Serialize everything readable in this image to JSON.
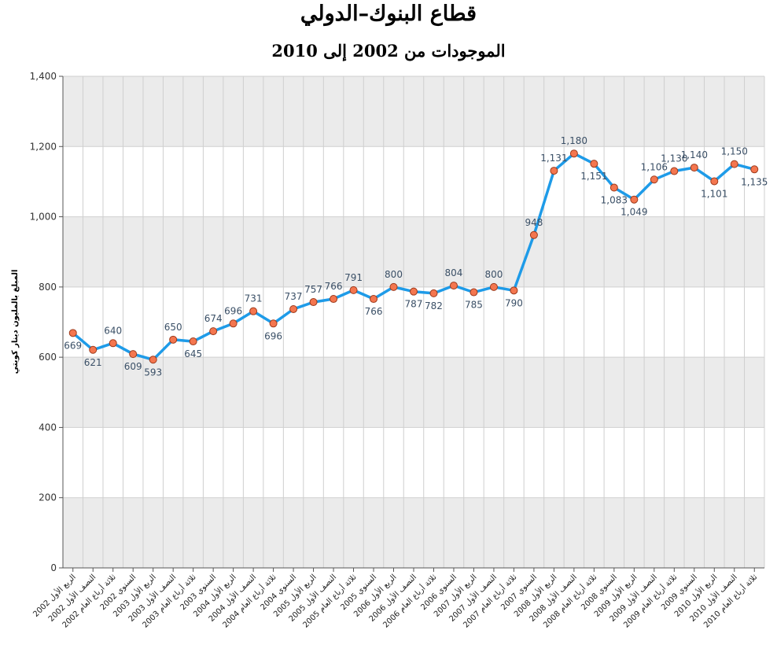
{
  "chart_data": {
    "type": "line",
    "title": "قطاع البنوك–الدولي",
    "subtitle": "الموجودات من 2002 إلى 2010",
    "xlabel": "",
    "ylabel": "المبلغ بالمليون دينار كويتي",
    "ylim": [
      0,
      1400
    ],
    "yticks": [
      0,
      200,
      400,
      600,
      800,
      1000,
      1200,
      1400
    ],
    "ytick_labels": [
      "0",
      "200",
      "400",
      "600",
      "800",
      "1,000",
      "1,200",
      "1,400"
    ],
    "grid": true,
    "categories": [
      "الربع الأول 2002",
      "النصف الأول 2002",
      "ثلاثة أرباع العام 2002",
      "السنوي 2002",
      "الربع الأول 2003",
      "النصف الأول 2003",
      "ثلاثة أرباع العام 2003",
      "السنوي 2003",
      "الربع الأول 2004",
      "النصف الأول 2004",
      "ثلاثة أرباع العام 2004",
      "السنوي 2004",
      "الربع الأول 2005",
      "النصف الأول 2005",
      "ثلاثة أرباع العام 2005",
      "السنوي 2005",
      "الربع الأول 2006",
      "النصف الأول 2006",
      "ثلاثة أرباع العام 2006",
      "السنوي 2006",
      "الربع الأول 2007",
      "النصف الأول 2007",
      "ثلاثة أرباع العام 2007",
      "السنوي 2007",
      "الربع الأول 2008",
      "النصف الأول 2008",
      "ثلاثة أرباع العام 2008",
      "السنوي 2008",
      "الربع الأول 2009",
      "النصف الأول 2009",
      "ثلاثة أرباع العام 2009",
      "السنوي 2009",
      "الربع الأول 2010",
      "النصف الأول 2010",
      "ثلاثة أرباع العام 2010"
    ],
    "values": [
      669,
      621,
      640,
      609,
      593,
      650,
      645,
      674,
      696,
      731,
      696,
      737,
      757,
      766,
      791,
      766,
      800,
      787,
      782,
      804,
      785,
      800,
      790,
      948,
      1131,
      1180,
      1151,
      1083,
      1049,
      1106,
      1130,
      1140,
      1101,
      1150,
      1135
    ],
    "data_labels": [
      "669",
      "621",
      "640",
      "609",
      "593",
      "650",
      "645",
      "674",
      "696",
      "731",
      "696",
      "737",
      "757",
      "766",
      "791",
      "766",
      "800",
      "787",
      "782",
      "804",
      "785",
      "800",
      "790",
      "948",
      "1,131",
      "1,180",
      "1,151",
      "1,083",
      "1,049",
      "1,106",
      "1,130",
      "1,140",
      "1,101",
      "1,150",
      "1,135"
    ],
    "colors": {
      "line": "#1e9be8",
      "marker_fill": "#f4764f",
      "marker_stroke": "#9c3a1c",
      "band": "#ebebeb",
      "grid": "#cfcfcf",
      "label": "#3a4f66"
    }
  }
}
